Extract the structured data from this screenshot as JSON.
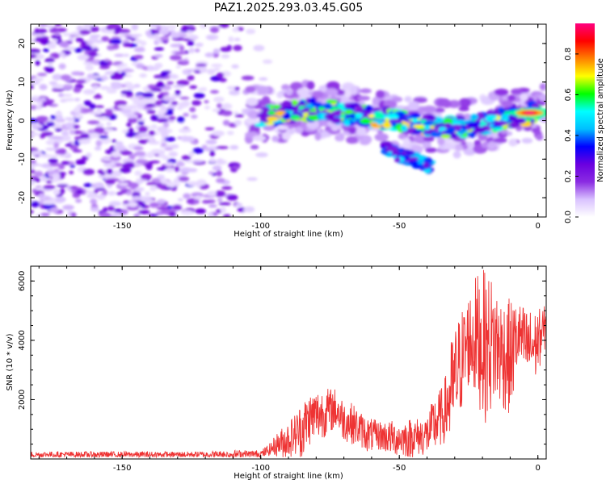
{
  "chart_data": [
    {
      "type": "heatmap",
      "title": "PAZ1.2025.293.03.45.G05",
      "xlabel": "Height of straight line (km)",
      "ylabel": "Frequency (Hz)",
      "xlim": [
        -183,
        3
      ],
      "ylim": [
        -25,
        25
      ],
      "xticks": [
        -150,
        -100,
        -50,
        0
      ],
      "yticks": [
        -20,
        -10,
        0,
        10,
        20
      ],
      "colorbar": {
        "label": "Normalized spectral amplitude",
        "range": [
          0.0,
          0.95
        ],
        "ticks": [
          0.0,
          0.2,
          0.4,
          0.6,
          0.8
        ],
        "colormap": [
          "#ffffff",
          "#d9c2ff",
          "#8a2be2",
          "#6a00e0",
          "#0000ff",
          "#00bfff",
          "#00ffff",
          "#00ff00",
          "#ffff00",
          "#ff8000",
          "#ff0000",
          "#ff0080"
        ]
      },
      "regions": [
        {
          "description": "diffuse noise",
          "x_range": [
            -183,
            -95
          ],
          "freq_range": [
            -25,
            25
          ],
          "amplitude": [
            0.05,
            0.3
          ]
        },
        {
          "description": "main signal ridge",
          "points": [
            [
              -100,
              1
            ],
            [
              -90,
              2
            ],
            [
              -80,
              3
            ],
            [
              -70,
              2
            ],
            [
              -60,
              1
            ],
            [
              -50,
              0
            ],
            [
              -40,
              -1
            ],
            [
              -30,
              -2
            ],
            [
              -20,
              -1
            ],
            [
              -10,
              1
            ],
            [
              0,
              2
            ]
          ],
          "amplitude": [
            0.2,
            0.95
          ]
        },
        {
          "description": "secondary branch",
          "points": [
            [
              -55,
              -7
            ],
            [
              -50,
              -9
            ],
            [
              -45,
              -10
            ],
            [
              -38,
              -12
            ]
          ],
          "amplitude": [
            0.2,
            0.5
          ]
        },
        {
          "description": "peak",
          "x": -3,
          "freq": 2,
          "amplitude": 0.95
        }
      ]
    },
    {
      "type": "line",
      "title": "",
      "xlabel": "Height of straight line (km)",
      "ylabel": "SNR (10 * v/v)",
      "xlim": [
        -183,
        3
      ],
      "ylim": [
        0,
        6500
      ],
      "xticks": [
        -150,
        -100,
        -50,
        0
      ],
      "yticks": [
        2000,
        4000,
        6000
      ],
      "color": "#ee3333",
      "series": [
        {
          "name": "SNR",
          "x": [
            -183,
            -170,
            -160,
            -150,
            -140,
            -130,
            -120,
            -110,
            -100,
            -97,
            -94,
            -91,
            -88,
            -85,
            -82,
            -79,
            -76,
            -73,
            -70,
            -67,
            -64,
            -61,
            -58,
            -55,
            -52,
            -49,
            -46,
            -43,
            -40,
            -37,
            -34,
            -31,
            -28,
            -25,
            -22,
            -19,
            -16,
            -13,
            -10,
            -7,
            -4,
            -1,
            3
          ],
          "values": [
            150,
            150,
            140,
            150,
            140,
            150,
            150,
            160,
            160,
            300,
            500,
            600,
            800,
            1000,
            1400,
            1500,
            1600,
            1700,
            1300,
            1200,
            1000,
            800,
            800,
            750,
            700,
            700,
            700,
            750,
            800,
            1200,
            1500,
            2300,
            3200,
            4000,
            4100,
            3800,
            3900,
            3600,
            3400,
            4200,
            3800,
            3800,
            4500
          ],
          "envelope_upper": [
            250,
            250,
            250,
            250,
            250,
            250,
            250,
            300,
            300,
            500,
            900,
            1200,
            1500,
            2000,
            2300,
            2400,
            2400,
            2400,
            2000,
            1900,
            1600,
            1400,
            1300,
            1300,
            1300,
            1300,
            1400,
            1400,
            1500,
            2200,
            2500,
            4200,
            5000,
            5600,
            6300,
            6400,
            6100,
            5500,
            5400,
            5300,
            5100,
            5000,
            5200
          ]
        }
      ]
    }
  ]
}
